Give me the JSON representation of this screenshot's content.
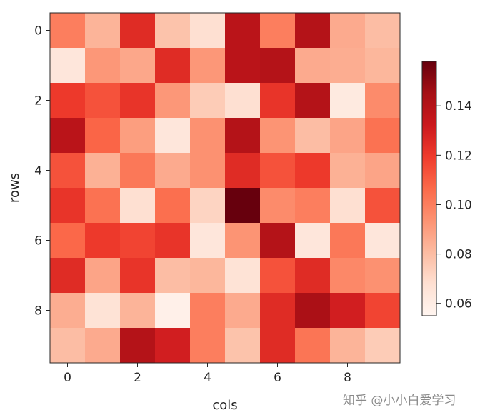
{
  "chart_data": {
    "type": "heatmap",
    "title": "",
    "xlabel": "cols",
    "ylabel": "rows",
    "x_ticks": [
      "0",
      "2",
      "4",
      "6",
      "8"
    ],
    "x_tick_values": [
      0,
      2,
      4,
      6,
      8
    ],
    "y_ticks": [
      "0",
      "2",
      "4",
      "6",
      "8"
    ],
    "y_tick_values": [
      0,
      2,
      4,
      6,
      8
    ],
    "n_rows": 10,
    "n_cols": 10,
    "colormap": "Reds",
    "vmin": 0.055,
    "vmax": 0.158,
    "colorbar": {
      "ticks": [
        "0.06",
        "0.08",
        "0.10",
        "0.12",
        "0.14"
      ],
      "tick_values": [
        0.06,
        0.08,
        0.1,
        0.12,
        0.14
      ],
      "position": "right"
    },
    "values": [
      [
        0.1,
        0.083,
        0.125,
        0.078,
        0.068,
        0.138,
        0.1,
        0.14,
        0.086,
        0.08
      ],
      [
        0.064,
        0.092,
        0.087,
        0.125,
        0.092,
        0.138,
        0.14,
        0.086,
        0.085,
        0.082
      ],
      [
        0.12,
        0.113,
        0.122,
        0.092,
        0.075,
        0.068,
        0.122,
        0.14,
        0.062,
        0.096
      ],
      [
        0.138,
        0.108,
        0.09,
        0.064,
        0.094,
        0.14,
        0.093,
        0.08,
        0.088,
        0.104
      ],
      [
        0.113,
        0.084,
        0.102,
        0.086,
        0.094,
        0.125,
        0.113,
        0.12,
        0.084,
        0.088
      ],
      [
        0.122,
        0.104,
        0.068,
        0.105,
        0.072,
        0.158,
        0.096,
        0.1,
        0.068,
        0.113
      ],
      [
        0.107,
        0.12,
        0.117,
        0.122,
        0.064,
        0.093,
        0.14,
        0.064,
        0.102,
        0.064
      ],
      [
        0.125,
        0.088,
        0.122,
        0.08,
        0.082,
        0.066,
        0.113,
        0.125,
        0.097,
        0.094
      ],
      [
        0.085,
        0.066,
        0.083,
        0.058,
        0.1,
        0.086,
        0.125,
        0.143,
        0.13,
        0.117
      ],
      [
        0.08,
        0.086,
        0.14,
        0.13,
        0.1,
        0.078,
        0.125,
        0.103,
        0.083,
        0.075
      ]
    ]
  },
  "watermark": "知乎 @小小白爱学习"
}
